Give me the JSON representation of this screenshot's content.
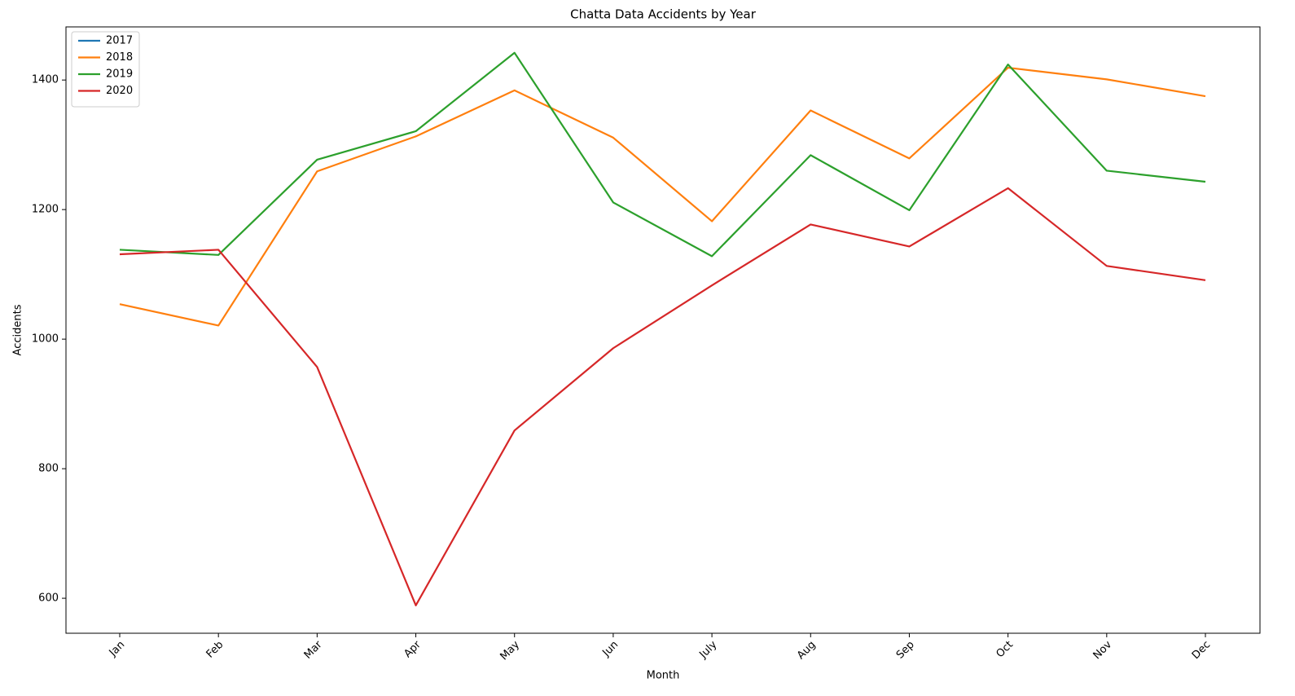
{
  "chart_data": {
    "type": "line",
    "title": "Chatta Data Accidents by Year",
    "x_label": "Month",
    "y_label": "Accidents",
    "categories": [
      "Jan",
      "Feb",
      "Mar",
      "Apr",
      "May",
      "Jun",
      "July",
      "Aug",
      "Sep",
      "Oct",
      "Nov",
      "Dec"
    ],
    "series": [
      {
        "name": "2017",
        "color": "#1f77b4",
        "values": [
          null,
          null,
          null,
          null,
          null,
          null,
          null,
          null,
          null,
          null,
          null,
          null
        ]
      },
      {
        "name": "2018",
        "color": "#ff7f0e",
        "values": [
          1054,
          1021,
          1259,
          1313,
          1384,
          1311,
          1182,
          1353,
          1279,
          1419,
          1401,
          1375
        ]
      },
      {
        "name": "2019",
        "color": "#2ca02c",
        "values": [
          1138,
          1130,
          1277,
          1321,
          1442,
          1211,
          1128,
          1284,
          1199,
          1424,
          1260,
          1243
        ]
      },
      {
        "name": "2020",
        "color": "#d62728",
        "values": [
          1131,
          1138,
          957,
          589,
          859,
          986,
          1083,
          1177,
          1143,
          1233,
          1113,
          1091
        ]
      }
    ],
    "ylim": [
      546,
      1482
    ],
    "yticks": [
      600,
      800,
      1000,
      1200,
      1400
    ],
    "grid": false,
    "legend": "upper left"
  }
}
